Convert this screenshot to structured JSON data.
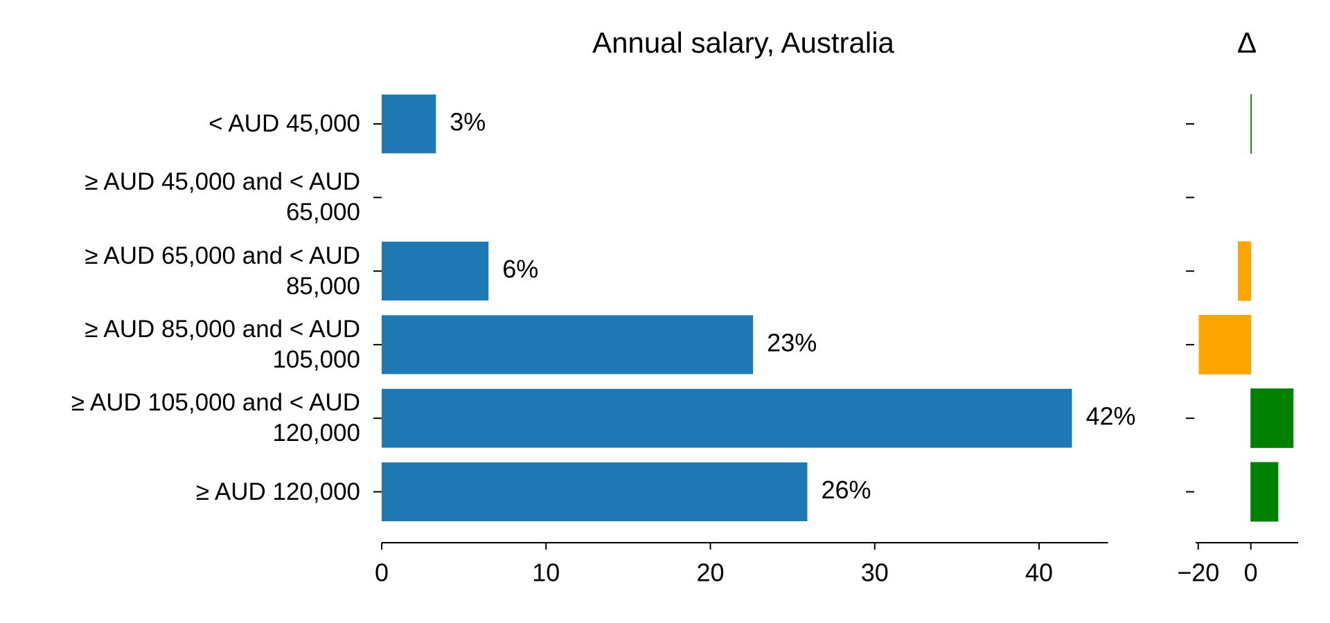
{
  "chart_data": [
    {
      "type": "barh",
      "title": "Annual salary, Australia",
      "categories": [
        "< AUD 45,000",
        "≥ AUD 45,000 and < AUD 65,000",
        "≥ AUD 65,000 and < AUD 85,000",
        "≥ AUD 85,000 and < AUD 105,000",
        "≥ AUD 105,000 and < AUD 120,000",
        "≥ AUD 120,000"
      ],
      "values": [
        3.3,
        null,
        6.5,
        22.6,
        42.0,
        25.9
      ],
      "value_labels": [
        "3%",
        null,
        "6%",
        "23%",
        "42%",
        "26%"
      ],
      "color": "#1f77b4",
      "xlim": [
        0,
        44.2
      ],
      "xticks": [
        0,
        10,
        20,
        30,
        40
      ]
    },
    {
      "type": "delta",
      "title": "Δ",
      "values": [
        0.2,
        null,
        -4.8,
        -19.7,
        16.1,
        10.3
      ],
      "color_positive": "#008000",
      "color_negative": "#ffa500",
      "xlim": [
        -21,
        18
      ],
      "xticks": [
        {
          "value": -20,
          "label": "−20"
        },
        0
      ]
    }
  ]
}
